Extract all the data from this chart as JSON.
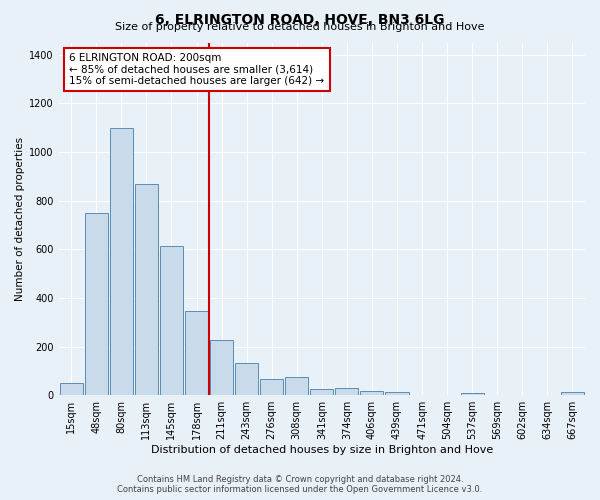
{
  "title": "6, ELRINGTON ROAD, HOVE, BN3 6LG",
  "subtitle": "Size of property relative to detached houses in Brighton and Hove",
  "xlabel": "Distribution of detached houses by size in Brighton and Hove",
  "ylabel": "Number of detached properties",
  "categories": [
    "15sqm",
    "48sqm",
    "80sqm",
    "113sqm",
    "145sqm",
    "178sqm",
    "211sqm",
    "243sqm",
    "276sqm",
    "308sqm",
    "341sqm",
    "374sqm",
    "406sqm",
    "439sqm",
    "471sqm",
    "504sqm",
    "537sqm",
    "569sqm",
    "602sqm",
    "634sqm",
    "667sqm"
  ],
  "values": [
    52,
    750,
    1100,
    868,
    613,
    345,
    225,
    132,
    68,
    75,
    25,
    28,
    18,
    12,
    0,
    0,
    10,
    0,
    0,
    0,
    12
  ],
  "bar_color": "#c9daea",
  "bar_edge_color": "#5a8db5",
  "vline_index": 6,
  "annotation_line1": "6 ELRINGTON ROAD: 200sqm",
  "annotation_line2": "← 85% of detached houses are smaller (3,614)",
  "annotation_line3": "15% of semi-detached houses are larger (642) →",
  "vline_color": "#cc0000",
  "ylim": [
    0,
    1450
  ],
  "yticks": [
    0,
    200,
    400,
    600,
    800,
    1000,
    1200,
    1400
  ],
  "footer1": "Contains HM Land Registry data © Crown copyright and database right 2024.",
  "footer2": "Contains public sector information licensed under the Open Government Licence v3.0.",
  "bg_color": "#e8f0f8",
  "plot_bg_color": "#e8f0f8",
  "title_fontsize": 10,
  "subtitle_fontsize": 8,
  "xlabel_fontsize": 8,
  "ylabel_fontsize": 7.5,
  "tick_fontsize": 7,
  "footer_fontsize": 6,
  "annot_fontsize": 7.5
}
